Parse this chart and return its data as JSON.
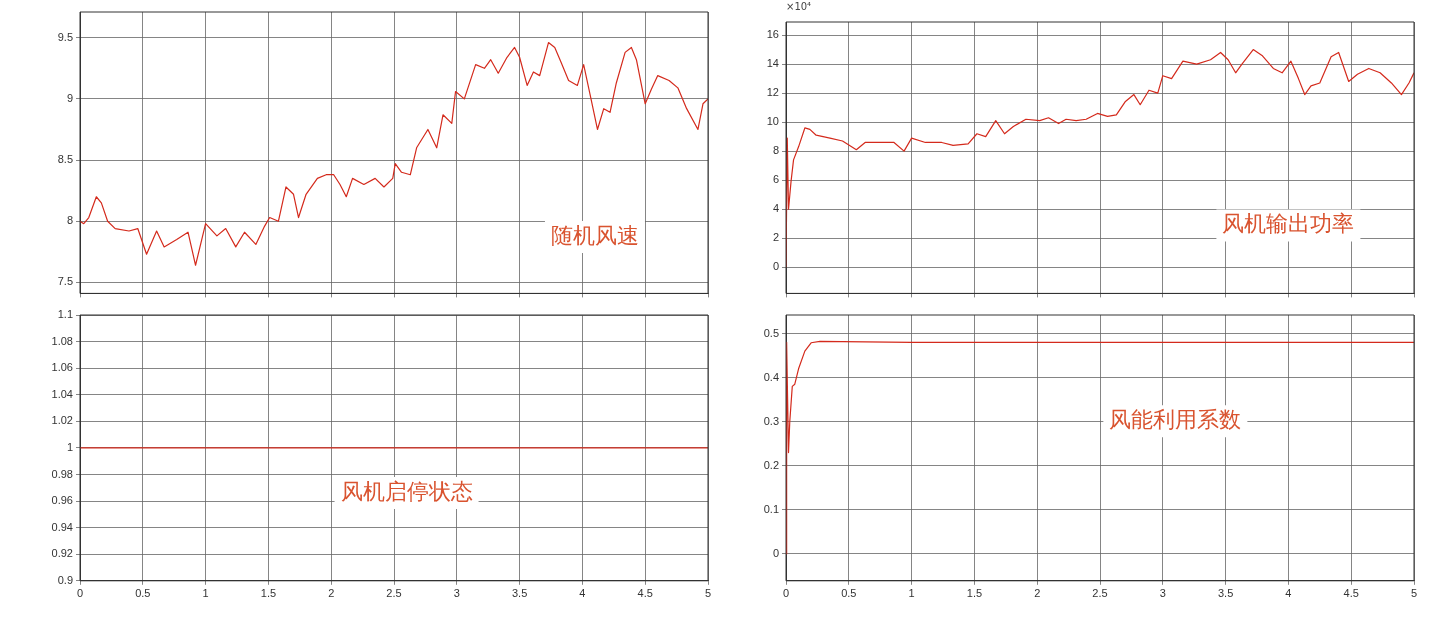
{
  "chart_data": [
    {
      "type": "line",
      "annotations": [
        "随机风速"
      ],
      "xlim": [
        0,
        5
      ],
      "xticks": [
        0,
        0.5,
        1,
        1.5,
        2,
        2.5,
        3,
        3.5,
        4,
        4.5,
        5
      ],
      "ylim": [
        7.41,
        9.71
      ],
      "yticks": [
        7.5,
        8,
        8.5,
        9,
        9.5
      ],
      "grid": true,
      "tick_labels": "y",
      "legend": false,
      "series": [
        {
          "color": "#d42a1c",
          "x": [
            0,
            0.03,
            0.07,
            0.13,
            0.17,
            0.22,
            0.28,
            0.39,
            0.46,
            0.53,
            0.61,
            0.67,
            0.77,
            0.86,
            0.92,
            1.0,
            1.09,
            1.16,
            1.24,
            1.31,
            1.4,
            1.47,
            1.51,
            1.58,
            1.64,
            1.7,
            1.74,
            1.8,
            1.89,
            1.96,
            2.02,
            2.07,
            2.12,
            2.17,
            2.26,
            2.35,
            2.42,
            2.49,
            2.51,
            2.56,
            2.63,
            2.68,
            2.77,
            2.84,
            2.89,
            2.96,
            2.99,
            3.06,
            3.15,
            3.22,
            3.27,
            3.33,
            3.4,
            3.46,
            3.5,
            3.56,
            3.61,
            3.66,
            3.73,
            3.78,
            3.83,
            3.89,
            3.96,
            4.01,
            4.06,
            4.12,
            4.17,
            4.22,
            4.27,
            4.34,
            4.39,
            4.43,
            4.5,
            4.55,
            4.6,
            4.69,
            4.76,
            4.83,
            4.92,
            4.96,
            5.0
          ],
          "values": [
            8.0,
            7.98,
            8.03,
            8.2,
            8.15,
            8.0,
            7.94,
            7.92,
            7.94,
            7.73,
            7.92,
            7.79,
            7.85,
            7.91,
            7.64,
            7.98,
            7.88,
            7.94,
            7.79,
            7.91,
            7.81,
            7.96,
            8.03,
            8.0,
            8.28,
            8.22,
            8.03,
            8.22,
            8.35,
            8.38,
            8.38,
            8.3,
            8.2,
            8.35,
            8.3,
            8.35,
            8.28,
            8.35,
            8.47,
            8.4,
            8.38,
            8.6,
            8.75,
            8.6,
            8.87,
            8.8,
            9.06,
            9.0,
            9.28,
            9.25,
            9.32,
            9.21,
            9.34,
            9.42,
            9.34,
            9.11,
            9.22,
            9.19,
            9.46,
            9.42,
            9.3,
            9.15,
            9.11,
            9.28,
            9.04,
            8.75,
            8.92,
            8.89,
            9.13,
            9.38,
            9.42,
            9.32,
            8.96,
            9.08,
            9.19,
            9.15,
            9.09,
            8.92,
            8.75,
            8.96,
            9.0
          ]
        }
      ]
    },
    {
      "type": "line",
      "annotations": [
        "×10⁴",
        "风机输出功率"
      ],
      "xlim": [
        0,
        5
      ],
      "xticks": [
        0,
        0.5,
        1,
        1.5,
        2,
        2.5,
        3,
        3.5,
        4,
        4.5,
        5
      ],
      "ylim": [
        -1.8,
        16.9
      ],
      "yticks": [
        0,
        2,
        4,
        6,
        8,
        10,
        12,
        14,
        16
      ],
      "grid": true,
      "tick_labels": "y",
      "legend": false,
      "series": [
        {
          "color": "#d42a1c",
          "x": [
            0,
            0.01,
            0.02,
            0.04,
            0.06,
            0.1,
            0.15,
            0.19,
            0.24,
            0.35,
            0.45,
            0.56,
            0.63,
            0.77,
            0.86,
            0.94,
            1.0,
            1.11,
            1.24,
            1.33,
            1.45,
            1.52,
            1.59,
            1.67,
            1.74,
            1.81,
            1.91,
            2.02,
            2.09,
            2.17,
            2.23,
            2.31,
            2.39,
            2.48,
            2.56,
            2.63,
            2.7,
            2.77,
            2.82,
            2.89,
            2.96,
            3.0,
            3.07,
            3.16,
            3.27,
            3.38,
            3.46,
            3.52,
            3.58,
            3.63,
            3.72,
            3.79,
            3.88,
            3.95,
            4.02,
            4.08,
            4.13,
            4.18,
            4.25,
            4.34,
            4.4,
            4.48,
            4.55,
            4.64,
            4.73,
            4.82,
            4.9,
            4.96,
            5.0
          ],
          "values": [
            0,
            8.9,
            4.0,
            5.9,
            7.4,
            8.3,
            9.6,
            9.5,
            9.1,
            8.9,
            8.7,
            8.1,
            8.6,
            8.6,
            8.6,
            8.0,
            8.9,
            8.6,
            8.6,
            8.4,
            8.5,
            9.2,
            9.0,
            10.1,
            9.2,
            9.7,
            10.2,
            10.1,
            10.3,
            9.9,
            10.2,
            10.1,
            10.2,
            10.6,
            10.4,
            10.5,
            11.4,
            11.9,
            11.2,
            12.2,
            12.0,
            13.2,
            13.0,
            14.2,
            14.0,
            14.3,
            14.8,
            14.3,
            13.4,
            14.0,
            15.0,
            14.6,
            13.7,
            13.4,
            14.2,
            13.0,
            11.9,
            12.5,
            12.7,
            14.5,
            14.8,
            12.8,
            13.3,
            13.7,
            13.4,
            12.7,
            11.9,
            12.7,
            13.4
          ]
        }
      ]
    },
    {
      "type": "line",
      "annotations": [
        "风机启停状态"
      ],
      "xlim": [
        0,
        5
      ],
      "xticks": [
        0,
        0.5,
        1,
        1.5,
        2,
        2.5,
        3,
        3.5,
        4,
        4.5,
        5
      ],
      "ylim": [
        0.9,
        1.1
      ],
      "yticks": [
        0.9,
        0.92,
        0.94,
        0.96,
        0.98,
        1,
        1.02,
        1.04,
        1.06,
        1.08,
        1.1
      ],
      "grid": true,
      "legend": false,
      "series": [
        {
          "color": "#d42a1c",
          "x": [
            0,
            5
          ],
          "values": [
            1,
            1
          ]
        }
      ]
    },
    {
      "type": "line",
      "annotations": [
        "风能利用系数"
      ],
      "xlim": [
        0,
        5
      ],
      "xticks": [
        0,
        0.5,
        1,
        1.5,
        2,
        2.5,
        3,
        3.5,
        4,
        4.5,
        5
      ],
      "ylim": [
        -0.061,
        0.542
      ],
      "yticks": [
        0,
        0.1,
        0.2,
        0.3,
        0.4,
        0.5
      ],
      "grid": true,
      "legend": false,
      "series": [
        {
          "color": "#d42a1c",
          "x": [
            0,
            0.005,
            0.02,
            0.03,
            0.05,
            0.07,
            0.1,
            0.15,
            0.2,
            0.27,
            1,
            2,
            3,
            4,
            5
          ],
          "values": [
            0,
            0.48,
            0.23,
            0.3,
            0.38,
            0.385,
            0.42,
            0.46,
            0.479,
            0.482,
            0.48,
            0.48,
            0.48,
            0.48,
            0.48
          ]
        }
      ]
    }
  ]
}
